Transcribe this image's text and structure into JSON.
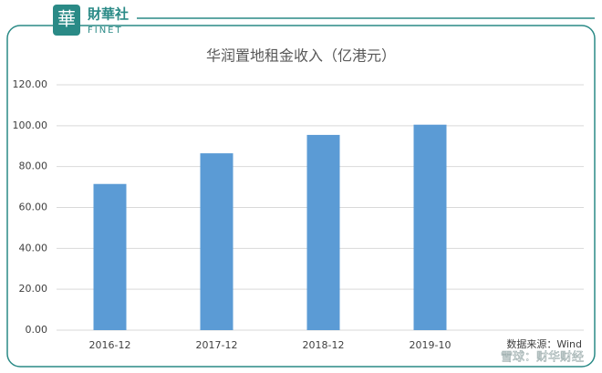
{
  "logo": {
    "mark": "華",
    "name": "財華社",
    "sub": "FINET"
  },
  "watermark": "雪球：财华财经",
  "chart_data": {
    "type": "bar",
    "title": "华润置地租金收入（亿港元）",
    "categories": [
      "2016-12",
      "2017-12",
      "2018-12",
      "2019-10"
    ],
    "values": [
      71.5,
      86.5,
      95.5,
      100.5
    ],
    "color": "#5b9bd5",
    "ylim": [
      0,
      120
    ],
    "yticks": [
      {
        "value": 0,
        "label": "0.00"
      },
      {
        "value": 20,
        "label": "20.00"
      },
      {
        "value": 40,
        "label": "40.00"
      },
      {
        "value": 60,
        "label": "60.00"
      },
      {
        "value": 80,
        "label": "80.00"
      },
      {
        "value": 100,
        "label": "100.00"
      },
      {
        "value": 120,
        "label": "120.00"
      }
    ],
    "grid": true,
    "source": "数据来源：Wind"
  }
}
